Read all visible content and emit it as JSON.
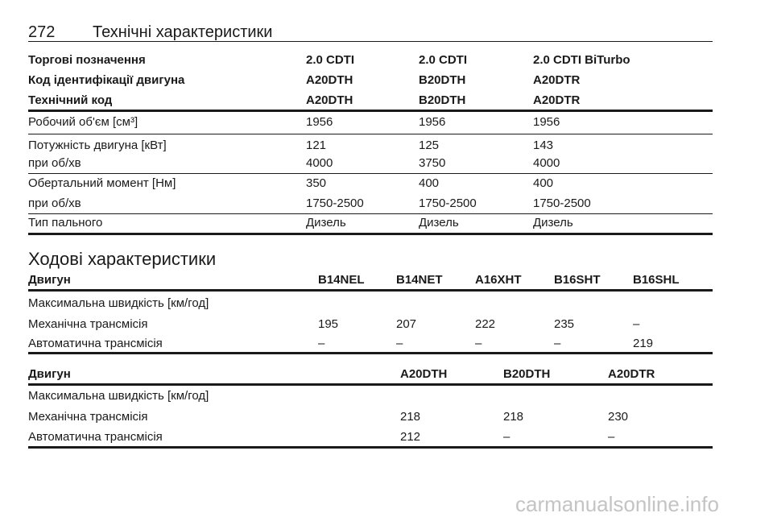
{
  "header": {
    "page_number": "272",
    "title": "Технічні характеристики"
  },
  "table1": {
    "header_rows": [
      [
        "Торгові позначення",
        "2.0 CDTI",
        "2.0 CDTI",
        "2.0 CDTI BiTurbo"
      ],
      [
        "Код ідентифікації двигуна",
        "A20DTH",
        "B20DTH",
        "A20DTR"
      ],
      [
        "Технічний код",
        "A20DTH",
        "B20DTH",
        "A20DTR"
      ]
    ],
    "rows": [
      [
        "Робочий об'єм [см³]",
        "1956",
        "1956",
        "1956"
      ],
      [
        "Потужність двигуна [кВт]",
        "121",
        "125",
        "143"
      ],
      [
        "при об/хв",
        "4000",
        "3750",
        "4000"
      ],
      [
        "Обертальний момент [Нм]",
        "350",
        "400",
        "400"
      ],
      [
        "при об/хв",
        "1750-2500",
        "1750-2500",
        "1750-2500"
      ],
      [
        "Тип пального",
        "Дизель",
        "Дизель",
        "Дизель"
      ]
    ]
  },
  "section_title": "Ходові характеристики",
  "table2": {
    "header": [
      "Двигун",
      "B14NEL",
      "B14NET",
      "A16XHT",
      "B16SHT",
      "B16SHL"
    ],
    "rows": [
      [
        "Максимальна швидкість [км/год]"
      ],
      [
        "Механічна трансмісія",
        "195",
        "207",
        "222",
        "235",
        "–"
      ],
      [
        "Автоматична трансмісія",
        "–",
        "–",
        "–",
        "–",
        "219"
      ]
    ]
  },
  "table3": {
    "header": [
      "Двигун",
      "A20DTH",
      "B20DTH",
      "A20DTR"
    ],
    "rows": [
      [
        "Максимальна швидкість [км/год]"
      ],
      [
        "Механічна трансмісія",
        "218",
        "218",
        "230"
      ],
      [
        "Автоматична трансмісія",
        "212",
        "–",
        "–"
      ]
    ]
  },
  "watermark": "carmanualsonline.info"
}
